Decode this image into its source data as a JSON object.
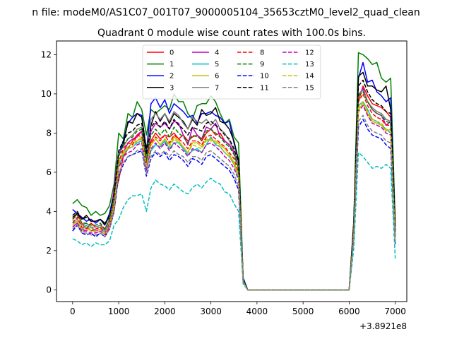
{
  "chart_data": {
    "type": "line",
    "suptitle": "n file: modeM0/AS1C07_001T07_9000005104_35653cztM0_level2_quad_clean",
    "title": "Quadrant 0 module wise count rates with 100.0s bins.",
    "xlabel": "",
    "ylabel": "",
    "x_offset_label": "+3.8921e8",
    "xlim": [
      -350,
      7250
    ],
    "ylim": [
      -0.6,
      12.7
    ],
    "x_ticks": [
      0,
      1000,
      2000,
      3000,
      4000,
      5000,
      6000,
      7000
    ],
    "y_ticks": [
      0,
      2,
      4,
      6,
      8,
      10,
      12
    ],
    "grid": false,
    "legend_position": "top-center",
    "legend_columns": 4,
    "x": [
      0,
      100,
      200,
      300,
      400,
      500,
      600,
      700,
      800,
      900,
      1000,
      1100,
      1200,
      1300,
      1400,
      1500,
      1600,
      1700,
      1800,
      1900,
      2000,
      2100,
      2200,
      2300,
      2400,
      2500,
      2600,
      2700,
      2800,
      2900,
      3000,
      3100,
      3200,
      3300,
      3400,
      3500,
      3600,
      3700,
      3800,
      3900,
      4000,
      4100,
      4200,
      4300,
      4400,
      4500,
      4600,
      4700,
      4800,
      4900,
      5000,
      5100,
      5200,
      5300,
      5400,
      5500,
      5600,
      5700,
      5800,
      5900,
      6000,
      6100,
      6200,
      6300,
      6400,
      6500,
      6600,
      6700,
      6800,
      6900,
      7000
    ],
    "series": [
      {
        "name": "0",
        "color": "#ff0000",
        "dash": "solid",
        "values": [
          3.6,
          3.9,
          3.4,
          3.1,
          3.4,
          3.2,
          3.3,
          3.1,
          3.6,
          4.7,
          5.6,
          6.8,
          7.2,
          7.6,
          7.9,
          8.1,
          6.3,
          7.6,
          8.0,
          7.7,
          7.9,
          7.8,
          8.0,
          7.7,
          7.9,
          7.6,
          7.8,
          7.9,
          7.6,
          8.0,
          8.2,
          7.9,
          8.0,
          7.6,
          7.4,
          7.0,
          6.5,
          0.5,
          0,
          0,
          0,
          0,
          0,
          0,
          0,
          0,
          0,
          0,
          0,
          0,
          0,
          0,
          0,
          0,
          0,
          0,
          0,
          0,
          0,
          0,
          0,
          3.0,
          9.6,
          10.4,
          9.9,
          9.5,
          9.4,
          9.3,
          9.1,
          8.8,
          2.8
        ]
      },
      {
        "name": "1",
        "color": "#008000",
        "dash": "solid",
        "values": [
          4.4,
          4.6,
          4.3,
          4.2,
          3.8,
          4.0,
          3.8,
          3.9,
          4.3,
          5.4,
          8.0,
          7.7,
          9.0,
          8.8,
          9.6,
          9.2,
          7.9,
          9.2,
          9.0,
          9.2,
          9.4,
          9.2,
          10.0,
          9.6,
          9.6,
          9.0,
          8.7,
          9.4,
          9.5,
          9.5,
          9.9,
          9.6,
          9.0,
          8.5,
          8.7,
          7.8,
          7.5,
          0.6,
          0,
          0,
          0,
          0,
          0,
          0,
          0,
          0,
          0,
          0,
          0,
          0,
          0,
          0,
          0,
          0,
          0,
          0,
          0,
          0,
          0,
          0,
          0,
          3.5,
          12.1,
          12.0,
          11.8,
          11.5,
          11.6,
          10.8,
          10.6,
          10.8,
          3.4
        ]
      },
      {
        "name": "2",
        "color": "#0000ff",
        "dash": "solid",
        "values": [
          4.1,
          3.9,
          3.7,
          3.5,
          3.6,
          3.4,
          3.6,
          3.3,
          3.9,
          5.0,
          6.9,
          7.6,
          8.5,
          8.8,
          9.0,
          8.9,
          7.0,
          9.5,
          9.8,
          9.3,
          9.7,
          9.0,
          9.5,
          9.3,
          9.1,
          8.8,
          8.9,
          8.5,
          9.0,
          9.0,
          9.1,
          8.9,
          8.8,
          8.5,
          8.6,
          7.5,
          6.6,
          0.6,
          0,
          0,
          0,
          0,
          0,
          0,
          0,
          0,
          0,
          0,
          0,
          0,
          0,
          0,
          0,
          0,
          0,
          0,
          0,
          0,
          0,
          0,
          0,
          3.4,
          10.8,
          11.6,
          10.6,
          10.7,
          10.1,
          9.9,
          9.6,
          9.8,
          3.0
        ]
      },
      {
        "name": "3",
        "color": "#000000",
        "dash": "solid",
        "values": [
          3.7,
          3.9,
          3.6,
          3.8,
          3.5,
          3.5,
          3.6,
          3.4,
          3.7,
          4.5,
          6.9,
          7.4,
          8.6,
          8.5,
          9.0,
          8.8,
          7.2,
          8.4,
          9.1,
          8.6,
          9.0,
          8.5,
          9.0,
          8.8,
          8.6,
          8.2,
          8.7,
          8.4,
          9.2,
          8.9,
          9.0,
          9.3,
          8.6,
          8.5,
          8.2,
          7.6,
          6.6,
          0.5,
          0,
          0,
          0,
          0,
          0,
          0,
          0,
          0,
          0,
          0,
          0,
          0,
          0,
          0,
          0,
          0,
          0,
          0,
          0,
          0,
          0,
          0,
          0,
          3.4,
          10.9,
          11.1,
          10.4,
          10.4,
          10.2,
          10.1,
          10.4,
          9.2,
          3.2
        ]
      },
      {
        "name": "4",
        "color": "#bf00bf",
        "dash": "solid",
        "values": [
          3.2,
          3.4,
          3.1,
          3.0,
          3.2,
          3.0,
          3.1,
          2.9,
          3.4,
          5.2,
          7.1,
          7.0,
          7.5,
          7.7,
          7.8,
          8.1,
          6.6,
          8.1,
          8.5,
          8.3,
          8.5,
          8.2,
          8.6,
          8.5,
          7.9,
          7.4,
          8.3,
          7.9,
          7.7,
          8.3,
          8.2,
          8.5,
          7.8,
          7.6,
          7.4,
          7.0,
          6.2,
          0.4,
          0,
          0,
          0,
          0,
          0,
          0,
          0,
          0,
          0,
          0,
          0,
          0,
          0,
          0,
          0,
          0,
          0,
          0,
          0,
          0,
          0,
          0,
          0,
          3.0,
          9.9,
          10.3,
          9.6,
          9.2,
          9.0,
          8.9,
          8.4,
          8.6,
          2.6
        ]
      },
      {
        "name": "5",
        "color": "#00bfbf",
        "dash": "solid",
        "values": [
          3.4,
          3.5,
          3.1,
          3.3,
          3.0,
          3.1,
          3.2,
          2.9,
          3.3,
          4.2,
          6.3,
          6.9,
          7.2,
          7.3,
          7.5,
          7.6,
          6.2,
          7.1,
          7.4,
          7.3,
          7.6,
          7.2,
          7.5,
          7.5,
          7.2,
          6.9,
          7.1,
          7.2,
          7.0,
          7.4,
          7.8,
          7.4,
          7.3,
          7.0,
          6.8,
          6.4,
          5.7,
          0.4,
          0,
          0,
          0,
          0,
          0,
          0,
          0,
          0,
          0,
          0,
          0,
          0,
          0,
          0,
          0,
          0,
          0,
          0,
          0,
          0,
          0,
          0,
          0,
          2.8,
          9.4,
          9.6,
          9.2,
          8.7,
          8.6,
          8.4,
          8.2,
          8.0,
          2.6
        ]
      },
      {
        "name": "6",
        "color": "#bfbf00",
        "dash": "solid",
        "values": [
          3.3,
          3.5,
          3.0,
          3.0,
          3.2,
          2.9,
          3.0,
          2.8,
          3.3,
          4.4,
          6.6,
          7.0,
          7.3,
          7.5,
          7.6,
          7.8,
          6.4,
          7.4,
          7.7,
          7.4,
          7.7,
          7.4,
          7.8,
          7.6,
          7.3,
          7.0,
          7.5,
          7.5,
          7.3,
          7.7,
          7.6,
          7.6,
          7.4,
          7.2,
          6.9,
          6.5,
          5.9,
          0.4,
          0,
          0,
          0,
          0,
          0,
          0,
          0,
          0,
          0,
          0,
          0,
          0,
          0,
          0,
          0,
          0,
          0,
          0,
          0,
          0,
          0,
          0,
          0,
          2.9,
          9.2,
          9.5,
          9.0,
          8.6,
          8.5,
          8.4,
          8.1,
          8.2,
          2.6
        ]
      },
      {
        "name": "7",
        "color": "#808080",
        "dash": "solid",
        "values": [
          3.5,
          3.6,
          3.3,
          3.4,
          3.2,
          3.2,
          3.3,
          3.0,
          3.6,
          4.6,
          7.0,
          7.3,
          7.7,
          7.9,
          8.2,
          8.3,
          6.8,
          8.7,
          9.0,
          8.7,
          9.0,
          8.6,
          9.1,
          8.9,
          8.5,
          8.2,
          8.8,
          8.6,
          8.5,
          8.7,
          8.4,
          8.7,
          8.2,
          8.0,
          7.6,
          7.1,
          6.4,
          0.5,
          0,
          0,
          0,
          0,
          0,
          0,
          0,
          0,
          0,
          0,
          0,
          0,
          0,
          0,
          0,
          0,
          0,
          0,
          0,
          0,
          0,
          0,
          0,
          3.1,
          10.0,
          10.2,
          9.6,
          9.3,
          9.1,
          9.0,
          8.7,
          8.6,
          2.7
        ]
      },
      {
        "name": "8",
        "color": "#ff0000",
        "dash": "dashed",
        "values": [
          3.4,
          3.7,
          3.2,
          3.2,
          3.0,
          3.1,
          3.2,
          2.9,
          3.3,
          4.5,
          6.5,
          7.2,
          7.5,
          7.4,
          7.9,
          7.8,
          6.4,
          7.5,
          7.8,
          7.6,
          7.9,
          7.5,
          7.9,
          7.7,
          7.5,
          7.2,
          7.6,
          7.6,
          7.4,
          7.8,
          7.9,
          7.7,
          7.5,
          7.3,
          7.0,
          6.7,
          6.0,
          0.4,
          0,
          0,
          0,
          0,
          0,
          0,
          0,
          0,
          0,
          0,
          0,
          0,
          0,
          0,
          0,
          0,
          0,
          0,
          0,
          0,
          0,
          0,
          0,
          3.0,
          9.6,
          10.0,
          9.4,
          9.0,
          8.8,
          8.7,
          8.4,
          8.4,
          2.7
        ]
      },
      {
        "name": "9",
        "color": "#008000",
        "dash": "dashed",
        "values": [
          3.6,
          3.8,
          3.4,
          3.4,
          3.3,
          3.3,
          3.4,
          3.1,
          3.6,
          4.7,
          6.8,
          7.4,
          7.7,
          7.8,
          8.1,
          8.2,
          6.6,
          7.9,
          8.2,
          7.9,
          8.2,
          7.8,
          8.3,
          8.0,
          7.8,
          7.5,
          7.9,
          7.8,
          7.7,
          8.1,
          8.2,
          8.0,
          7.8,
          7.5,
          7.3,
          6.9,
          6.2,
          0.5,
          0,
          0,
          0,
          0,
          0,
          0,
          0,
          0,
          0,
          0,
          0,
          0,
          0,
          0,
          0,
          0,
          0,
          0,
          0,
          0,
          0,
          0,
          0,
          3.1,
          9.9,
          10.1,
          9.6,
          9.2,
          9.0,
          8.9,
          8.6,
          8.5,
          2.8
        ]
      },
      {
        "name": "10",
        "color": "#0000ff",
        "dash": "dashed",
        "values": [
          3.0,
          3.3,
          2.9,
          2.8,
          2.9,
          2.7,
          2.9,
          2.7,
          3.1,
          4.0,
          5.8,
          6.4,
          6.8,
          6.9,
          7.0,
          7.1,
          5.8,
          6.7,
          7.0,
          6.8,
          7.0,
          6.6,
          6.9,
          6.8,
          6.6,
          6.3,
          6.7,
          6.6,
          6.4,
          6.8,
          6.9,
          6.7,
          6.5,
          6.3,
          6.1,
          5.7,
          5.1,
          0.4,
          0,
          0,
          0,
          0,
          0,
          0,
          0,
          0,
          0,
          0,
          0,
          0,
          0,
          0,
          0,
          0,
          0,
          0,
          0,
          0,
          0,
          0,
          0,
          2.6,
          8.3,
          8.7,
          8.2,
          7.9,
          7.8,
          7.7,
          7.4,
          7.2,
          2.3
        ]
      },
      {
        "name": "11",
        "color": "#000000",
        "dash": "dashed",
        "values": [
          3.8,
          4.0,
          3.6,
          3.7,
          3.5,
          3.5,
          3.6,
          3.3,
          3.8,
          4.9,
          7.1,
          7.6,
          8.0,
          8.1,
          8.4,
          8.5,
          6.9,
          8.3,
          8.6,
          8.3,
          8.6,
          8.2,
          8.7,
          8.4,
          8.2,
          7.9,
          8.3,
          8.2,
          8.1,
          8.5,
          8.6,
          8.4,
          8.2,
          7.9,
          7.7,
          7.2,
          6.5,
          0.5,
          0,
          0,
          0,
          0,
          0,
          0,
          0,
          0,
          0,
          0,
          0,
          0,
          0,
          0,
          0,
          0,
          0,
          0,
          0,
          0,
          0,
          0,
          0,
          3.2,
          10.4,
          10.7,
          10.1,
          9.7,
          9.5,
          9.4,
          9.1,
          9.0,
          2.9
        ]
      },
      {
        "name": "12",
        "color": "#bf00bf",
        "dash": "dashed",
        "values": [
          3.2,
          3.4,
          3.0,
          3.0,
          2.9,
          2.9,
          3.0,
          2.8,
          3.2,
          4.2,
          6.2,
          6.8,
          7.0,
          7.1,
          7.4,
          7.5,
          6.1,
          7.2,
          7.5,
          7.2,
          7.5,
          7.1,
          7.5,
          7.3,
          7.1,
          6.8,
          7.2,
          7.1,
          7.0,
          7.4,
          7.5,
          7.3,
          7.1,
          6.8,
          6.6,
          6.2,
          5.6,
          0.4,
          0,
          0,
          0,
          0,
          0,
          0,
          0,
          0,
          0,
          0,
          0,
          0,
          0,
          0,
          0,
          0,
          0,
          0,
          0,
          0,
          0,
          0,
          0,
          2.8,
          9.1,
          9.4,
          8.9,
          8.5,
          8.4,
          8.3,
          8.0,
          7.9,
          2.5
        ]
      },
      {
        "name": "13",
        "color": "#00bfbf",
        "dash": "dashed",
        "values": [
          2.6,
          2.5,
          2.3,
          2.4,
          2.2,
          2.4,
          2.3,
          2.3,
          2.5,
          3.3,
          3.6,
          4.2,
          4.6,
          4.8,
          4.8,
          4.9,
          4.0,
          5.2,
          5.6,
          5.4,
          5.3,
          5.1,
          5.4,
          5.2,
          5.0,
          4.9,
          5.2,
          5.4,
          5.2,
          5.5,
          5.7,
          5.5,
          5.4,
          5.0,
          4.9,
          4.4,
          4.0,
          0.3,
          0,
          0,
          0,
          0,
          0,
          0,
          0,
          0,
          0,
          0,
          0,
          0,
          0,
          0,
          0,
          0,
          0,
          0,
          0,
          0,
          0,
          0,
          0,
          2.1,
          7.0,
          6.8,
          6.5,
          6.2,
          6.3,
          6.2,
          6.4,
          6.2,
          1.6
        ]
      },
      {
        "name": "14",
        "color": "#bfbf00",
        "dash": "dashed",
        "values": [
          3.3,
          3.5,
          3.1,
          3.2,
          3.0,
          3.0,
          3.1,
          2.9,
          3.3,
          4.3,
          6.4,
          6.9,
          7.2,
          7.3,
          7.6,
          7.7,
          6.3,
          7.4,
          7.7,
          7.4,
          7.7,
          7.3,
          7.7,
          7.5,
          7.3,
          7.0,
          7.4,
          7.3,
          7.2,
          7.6,
          7.7,
          7.5,
          7.3,
          7.0,
          6.8,
          6.4,
          5.8,
          0.4,
          0,
          0,
          0,
          0,
          0,
          0,
          0,
          0,
          0,
          0,
          0,
          0,
          0,
          0,
          0,
          0,
          0,
          0,
          0,
          0,
          0,
          0,
          0,
          2.9,
          9.3,
          9.6,
          9.1,
          8.7,
          8.6,
          8.5,
          8.2,
          8.1,
          2.6
        ]
      },
      {
        "name": "15",
        "color": "#808080",
        "dash": "dashed",
        "values": [
          3.1,
          3.3,
          2.9,
          2.9,
          2.8,
          2.8,
          2.9,
          2.7,
          3.1,
          4.0,
          5.9,
          6.5,
          6.8,
          6.9,
          7.1,
          7.2,
          5.9,
          6.8,
          7.1,
          6.9,
          7.1,
          6.8,
          7.1,
          6.9,
          6.8,
          6.5,
          6.8,
          6.8,
          6.6,
          7.0,
          7.1,
          6.9,
          6.7,
          6.5,
          6.3,
          5.9,
          5.3,
          0.4,
          0,
          0,
          0,
          0,
          0,
          0,
          0,
          0,
          0,
          0,
          0,
          0,
          0,
          0,
          0,
          0,
          0,
          0,
          0,
          0,
          0,
          0,
          0,
          2.7,
          8.6,
          8.9,
          8.4,
          8.1,
          8.0,
          7.9,
          7.6,
          7.5,
          2.4
        ]
      }
    ]
  }
}
